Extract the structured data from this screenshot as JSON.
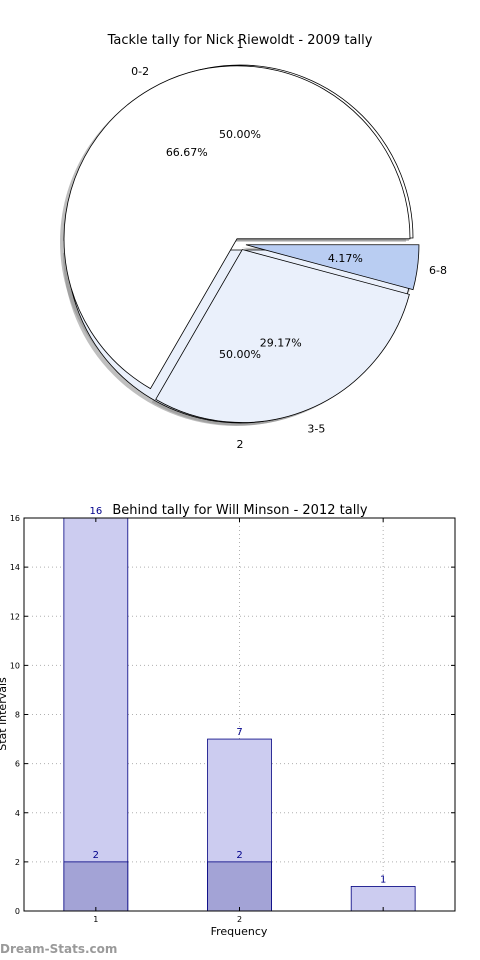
{
  "chart_data": [
    {
      "type": "pie",
      "title": "Tackle tally for Nick Riewoldt - 2009 tally",
      "rings": [
        {
          "name": "outer",
          "slices": [
            {
              "label": "1",
              "value": 50.0,
              "pct_text": "50.00%",
              "color": "#ffffff"
            },
            {
              "label": "2",
              "value": 50.0,
              "pct_text": "50.00%",
              "color": "#eaf0fb"
            }
          ]
        },
        {
          "name": "inner",
          "slices": [
            {
              "label": "0-2",
              "value": 66.67,
              "pct_text": "66.67%",
              "color": "#ffffff"
            },
            {
              "label": "3-5",
              "value": 29.17,
              "pct_text": "29.17%",
              "color": "#eaf0fb"
            },
            {
              "label": "6-8",
              "value": 4.17,
              "pct_text": "4.17%",
              "color": "#b9cdf2"
            }
          ]
        }
      ],
      "shadow": true,
      "exploded": true
    },
    {
      "type": "bar",
      "title": "Behind tally for Will Minson - 2012 tally",
      "xlabel": "Frequency",
      "ylabel": "Stat intervals",
      "categories": [
        "1",
        "2",
        ""
      ],
      "ylim": [
        0,
        16
      ],
      "yticks": [
        "0",
        "2",
        "4",
        "6",
        "8",
        "10",
        "12",
        "14",
        "16"
      ],
      "grid": true,
      "series": [
        {
          "values": [
            16,
            7,
            1
          ],
          "labels": [
            "16",
            "7",
            "1"
          ],
          "color": "#ccccf0"
        },
        {
          "values": [
            2,
            2,
            0
          ],
          "labels": [
            "2",
            "2",
            ""
          ],
          "color": "#a3a3d6"
        }
      ]
    }
  ],
  "footer": {
    "watermark": "Dream-Stats.com"
  }
}
